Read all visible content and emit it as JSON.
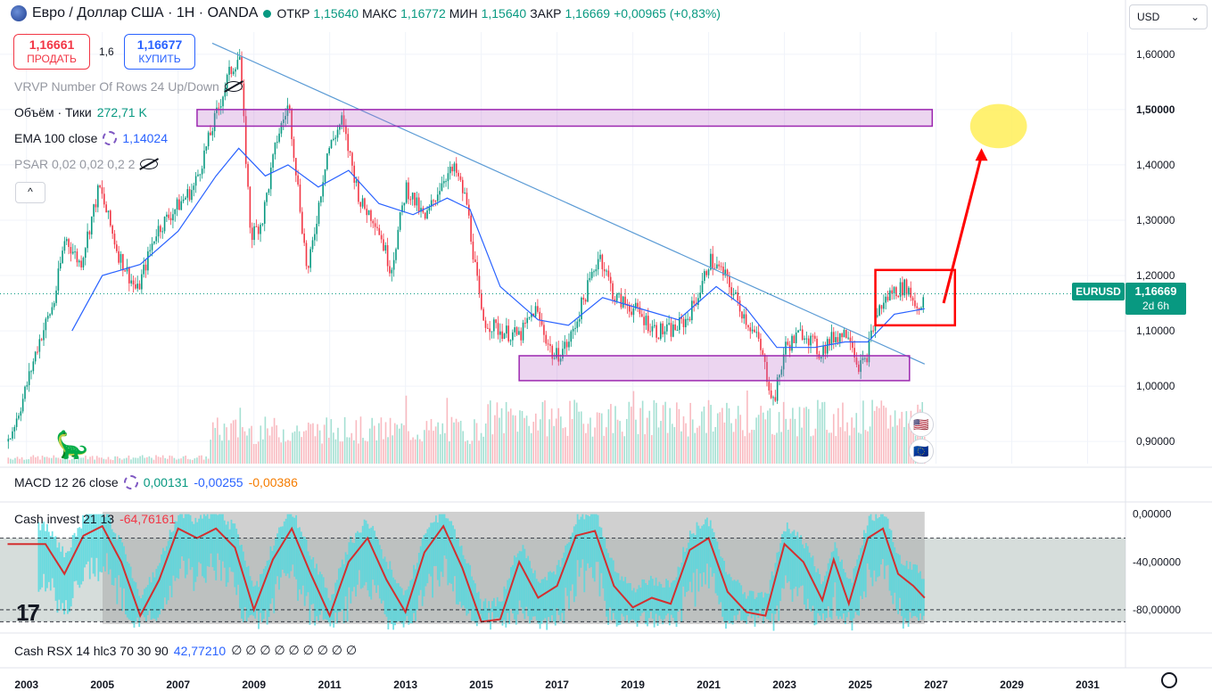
{
  "header": {
    "title": "Евро / Доллар США · 1H · OANDA",
    "open_label": "ОТКР",
    "open": "1,15640",
    "high_label": "МАКС",
    "high": "1,16772",
    "low_label": "МИН",
    "low": "1,15640",
    "close_label": "ЗАКР",
    "close": "1,16669",
    "change": "+0,00965 (+0,83%)"
  },
  "trade": {
    "sell_price": "1,16661",
    "sell_label": "ПРОДАТЬ",
    "spread": "1,6",
    "buy_price": "1,16677",
    "buy_label": "КУПИТЬ"
  },
  "indicators": {
    "vrvp": "VRVP Number Of Rows 24 Up/Down",
    "volume_label": "Объём · Тики",
    "volume_value": "272,71 K",
    "ema_label": "EMA 100 close",
    "ema_value": "1,14024",
    "psar": "PSAR 0,02 0,02 0,2 2",
    "collapse_icon": "^"
  },
  "currency_select": {
    "value": "USD",
    "arrow": "⌄"
  },
  "last_price": {
    "symbol": "EURUSD",
    "price": "1,16669",
    "countdown": "2d 6h"
  },
  "macd": {
    "label": "MACD 12 26 close",
    "v1": "0,00131",
    "v2": "-0,00255",
    "v3": "-0,00386"
  },
  "cash_invest": {
    "label": "Cash invest 21 13",
    "v2": "-64,76161"
  },
  "cash_rsx": {
    "label": "Cash RSX 14 hlc3 70 30 90",
    "value": "42,77210",
    "tail": "∅ ∅ ∅ ∅ ∅ ∅ ∅ ∅ ∅"
  },
  "logo": "17",
  "colors": {
    "up": "#089981",
    "down": "#f23645",
    "ema": "#2962ff",
    "zone": "#9c27b0",
    "annot": "#ff0000",
    "accent": "#089981"
  },
  "chart_data": [
    {
      "type": "candlestick",
      "symbol": "EURUSD",
      "x_axis": {
        "range": [
          2002.3,
          2032.0
        ],
        "tick_labels": [
          "2003",
          "2005",
          "2007",
          "2009",
          "2011",
          "2013",
          "2015",
          "2017",
          "2019",
          "2021",
          "2023",
          "2025",
          "2027",
          "2029",
          "2031"
        ],
        "tick_values": [
          2003,
          2005,
          2007,
          2009,
          2011,
          2013,
          2015,
          2017,
          2019,
          2021,
          2023,
          2025,
          2027,
          2029,
          2031
        ]
      },
      "y_axis": {
        "range": [
          0.86,
          1.64
        ],
        "tick_labels": [
          "0,90000",
          "1,00000",
          "1,10000",
          "1,20000",
          "1,30000",
          "1,40000",
          "1,50000",
          "1,60000"
        ],
        "tick_values": [
          0.9,
          1.0,
          1.1,
          1.2,
          1.3,
          1.4,
          1.5,
          1.6
        ],
        "highlighted": "1,50000"
      },
      "price_path": [
        [
          2002.5,
          0.9
        ],
        [
          2002.9,
          0.98
        ],
        [
          2003.3,
          1.08
        ],
        [
          2003.7,
          1.15
        ],
        [
          2004.0,
          1.27
        ],
        [
          2004.4,
          1.22
        ],
        [
          2004.9,
          1.36
        ],
        [
          2005.4,
          1.24
        ],
        [
          2005.9,
          1.17
        ],
        [
          2006.4,
          1.28
        ],
        [
          2006.9,
          1.32
        ],
        [
          2007.4,
          1.36
        ],
        [
          2007.9,
          1.47
        ],
        [
          2008.3,
          1.56
        ],
        [
          2008.6,
          1.6
        ],
        [
          2008.9,
          1.27
        ],
        [
          2009.2,
          1.3
        ],
        [
          2009.6,
          1.45
        ],
        [
          2009.9,
          1.51
        ],
        [
          2010.4,
          1.2
        ],
        [
          2010.9,
          1.42
        ],
        [
          2011.3,
          1.48
        ],
        [
          2011.8,
          1.33
        ],
        [
          2012.2,
          1.3
        ],
        [
          2012.6,
          1.21
        ],
        [
          2013.0,
          1.36
        ],
        [
          2013.5,
          1.3
        ],
        [
          2014.0,
          1.38
        ],
        [
          2014.3,
          1.39
        ],
        [
          2014.6,
          1.33
        ],
        [
          2015.0,
          1.12
        ],
        [
          2015.5,
          1.1
        ],
        [
          2016.0,
          1.09
        ],
        [
          2016.4,
          1.14
        ],
        [
          2016.9,
          1.05
        ],
        [
          2017.3,
          1.08
        ],
        [
          2017.8,
          1.18
        ],
        [
          2018.1,
          1.24
        ],
        [
          2018.5,
          1.16
        ],
        [
          2019.0,
          1.14
        ],
        [
          2019.6,
          1.1
        ],
        [
          2020.0,
          1.1
        ],
        [
          2020.4,
          1.12
        ],
        [
          2020.8,
          1.18
        ],
        [
          2021.0,
          1.23
        ],
        [
          2021.4,
          1.2
        ],
        [
          2021.9,
          1.13
        ],
        [
          2022.3,
          1.08
        ],
        [
          2022.7,
          0.97
        ],
        [
          2023.0,
          1.07
        ],
        [
          2023.5,
          1.1
        ],
        [
          2023.9,
          1.06
        ],
        [
          2024.3,
          1.09
        ],
        [
          2024.7,
          1.1
        ],
        [
          2024.9,
          1.04
        ],
        [
          2025.1,
          1.04
        ],
        [
          2025.4,
          1.13
        ],
        [
          2025.8,
          1.17
        ],
        [
          2026.2,
          1.18
        ],
        [
          2026.5,
          1.14
        ],
        [
          2026.7,
          1.167
        ]
      ],
      "ema100_path": [
        [
          2004.2,
          1.1
        ],
        [
          2005.0,
          1.2
        ],
        [
          2006.0,
          1.22
        ],
        [
          2007.0,
          1.28
        ],
        [
          2008.0,
          1.38
        ],
        [
          2008.6,
          1.43
        ],
        [
          2009.3,
          1.38
        ],
        [
          2009.9,
          1.4
        ],
        [
          2010.7,
          1.36
        ],
        [
          2011.5,
          1.39
        ],
        [
          2012.3,
          1.33
        ],
        [
          2013.2,
          1.31
        ],
        [
          2014.1,
          1.34
        ],
        [
          2014.7,
          1.32
        ],
        [
          2015.5,
          1.18
        ],
        [
          2016.5,
          1.12
        ],
        [
          2017.3,
          1.11
        ],
        [
          2018.2,
          1.16
        ],
        [
          2019.2,
          1.14
        ],
        [
          2020.2,
          1.12
        ],
        [
          2021.2,
          1.18
        ],
        [
          2022.0,
          1.14
        ],
        [
          2022.8,
          1.07
        ],
        [
          2023.8,
          1.07
        ],
        [
          2024.6,
          1.08
        ],
        [
          2025.2,
          1.08
        ],
        [
          2025.9,
          1.13
        ],
        [
          2026.7,
          1.14
        ]
      ],
      "trendline": [
        [
          2007.9,
          1.62
        ],
        [
          2026.7,
          1.04
        ]
      ],
      "zones": [
        {
          "x": [
            2007.5,
            2026.9
          ],
          "y": [
            1.47,
            1.5
          ]
        },
        {
          "x": [
            2016.0,
            2026.3
          ],
          "y": [
            1.01,
            1.055
          ]
        }
      ],
      "annotations": {
        "box": {
          "x": [
            2025.4,
            2027.5
          ],
          "y": [
            1.11,
            1.21
          ]
        },
        "arrow": {
          "from": [
            2027.2,
            1.15
          ],
          "to": [
            2028.2,
            1.43
          ]
        },
        "target_marker": {
          "x": [
            2027.9,
            2029.4
          ],
          "y": [
            1.43,
            1.51
          ]
        }
      }
    },
    {
      "type": "area",
      "name": "Cash invest 21 13",
      "y_axis": {
        "range": [
          -92,
          2
        ],
        "tick_labels": [
          "0,00000",
          "-40,00000",
          "-80,00000"
        ],
        "tick_values": [
          0,
          -40,
          -80
        ],
        "levels": [
          -20,
          -80,
          -90
        ]
      },
      "shaded_range_x": [
        2002.3,
        2026.7
      ],
      "oscillator_path": [
        [
          2002.5,
          -25
        ],
        [
          2003.5,
          -25
        ],
        [
          2004.0,
          -50
        ],
        [
          2004.5,
          -18
        ],
        [
          2005.0,
          -10
        ],
        [
          2005.5,
          -40
        ],
        [
          2006.0,
          -85
        ],
        [
          2006.5,
          -55
        ],
        [
          2007.0,
          -12
        ],
        [
          2007.5,
          -20
        ],
        [
          2008.0,
          -12
        ],
        [
          2008.5,
          -28
        ],
        [
          2009.0,
          -80
        ],
        [
          2009.5,
          -38
        ],
        [
          2010.0,
          -12
        ],
        [
          2010.5,
          -50
        ],
        [
          2011.0,
          -85
        ],
        [
          2011.5,
          -40
        ],
        [
          2012.0,
          -20
        ],
        [
          2012.5,
          -55
        ],
        [
          2013.0,
          -82
        ],
        [
          2013.5,
          -32
        ],
        [
          2014.0,
          -10
        ],
        [
          2014.5,
          -45
        ],
        [
          2015.0,
          -90
        ],
        [
          2015.5,
          -88
        ],
        [
          2016.0,
          -40
        ],
        [
          2016.5,
          -70
        ],
        [
          2017.0,
          -60
        ],
        [
          2017.5,
          -18
        ],
        [
          2018.0,
          -14
        ],
        [
          2018.5,
          -60
        ],
        [
          2019.0,
          -78
        ],
        [
          2019.5,
          -70
        ],
        [
          2020.0,
          -75
        ],
        [
          2020.5,
          -30
        ],
        [
          2021.0,
          -20
        ],
        [
          2021.5,
          -65
        ],
        [
          2022.0,
          -82
        ],
        [
          2022.5,
          -85
        ],
        [
          2023.0,
          -25
        ],
        [
          2023.5,
          -40
        ],
        [
          2024.0,
          -72
        ],
        [
          2024.3,
          -38
        ],
        [
          2024.7,
          -75
        ],
        [
          2025.2,
          -20
        ],
        [
          2025.6,
          -12
        ],
        [
          2026.0,
          -50
        ],
        [
          2026.4,
          -60
        ],
        [
          2026.7,
          -70
        ]
      ]
    }
  ]
}
